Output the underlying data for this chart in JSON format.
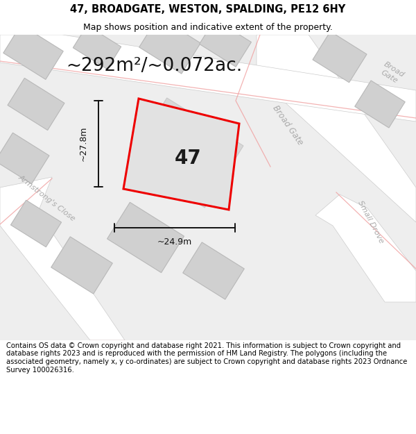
{
  "title": "47, BROADGATE, WESTON, SPALDING, PE12 6HY",
  "subtitle": "Map shows position and indicative extent of the property.",
  "area_text": "~292m²/~0.072ac.",
  "property_number": "47",
  "dim_width": "~24.9m",
  "dim_height": "~27.8m",
  "footnote": "Contains OS data © Crown copyright and database right 2021. This information is subject to Crown copyright and database rights 2023 and is reproduced with the permission of HM Land Registry. The polygons (including the associated geometry, namely x, y co-ordinates) are subject to Crown copyright and database rights 2023 Ordnance Survey 100026316.",
  "bg_color": "#ffffff",
  "map_bg": "#eeeeee",
  "road_color": "#ffffff",
  "road_edge_color": "#cccccc",
  "building_color": "#d0d0d0",
  "building_edge": "#b8b8b8",
  "plot_fill": "#e2e2e2",
  "plot_border": "#ee0000",
  "dim_line_color": "#111111",
  "road_line_color": "#f0a0a0",
  "street_label_color": "#aaaaaa",
  "title_fontsize": 10.5,
  "subtitle_fontsize": 9,
  "area_fontsize": 19,
  "number_fontsize": 20,
  "dim_fontsize": 9,
  "street_fontsize": 8.5,
  "footnote_fontsize": 7.2
}
